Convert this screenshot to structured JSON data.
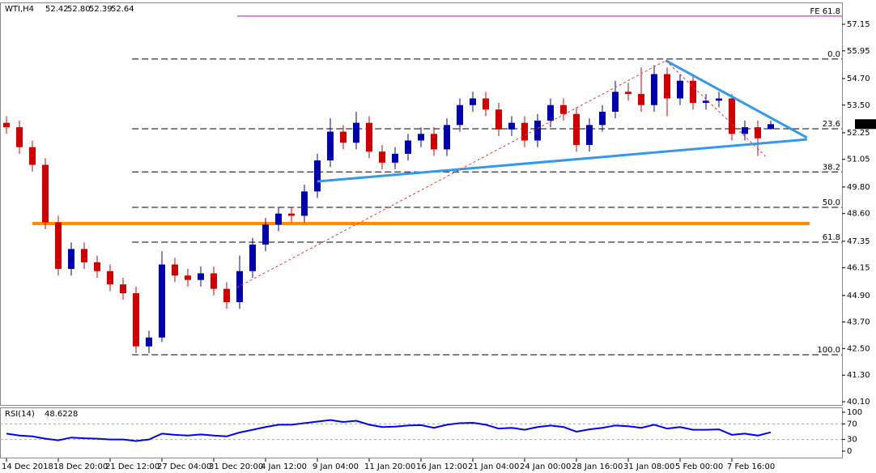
{
  "chart_data": [
    {
      "type": "candlestick",
      "symbol": "WTI,H4",
      "quote": [
        "52.42",
        "52.80",
        "52.39",
        "52.64"
      ],
      "up_color": "#0000b0",
      "down_color": "#d00000",
      "open": [
        52.7,
        52.5,
        51.6,
        50.8,
        48.2,
        46.1,
        47.0,
        46.4,
        46.0,
        45.4,
        45.0,
        42.6,
        43.0,
        46.3,
        45.8,
        45.6,
        45.9,
        45.2,
        44.6,
        46.0,
        47.2,
        48.1,
        48.6,
        48.5,
        49.6,
        51.0,
        52.3,
        51.8,
        52.7,
        51.4,
        50.9,
        51.3,
        51.9,
        52.2,
        51.5,
        52.6,
        53.5,
        53.8,
        53.3,
        52.4,
        52.7,
        51.9,
        52.8,
        53.5,
        53.1,
        51.7,
        52.6,
        53.2,
        54.1,
        54.0,
        53.5,
        54.9,
        53.8,
        54.6,
        53.6,
        53.7,
        53.8,
        52.2,
        52.5,
        52.42
      ],
      "high": [
        53.0,
        52.8,
        51.9,
        51.1,
        48.5,
        47.3,
        47.3,
        46.7,
        46.3,
        45.7,
        45.3,
        43.3,
        46.9,
        46.6,
        46.1,
        46.2,
        46.2,
        45.5,
        46.7,
        47.5,
        48.4,
        48.9,
        48.9,
        49.9,
        51.3,
        52.9,
        52.6,
        53.2,
        53.0,
        51.7,
        51.6,
        52.2,
        52.5,
        52.5,
        52.9,
        53.8,
        54.1,
        54.1,
        53.6,
        53.0,
        53.0,
        53.1,
        53.8,
        53.8,
        53.4,
        52.9,
        53.5,
        54.6,
        54.5,
        55.2,
        55.3,
        55.2,
        54.9,
        54.9,
        54.0,
        54.1,
        54.0,
        52.8,
        52.8,
        52.8
      ],
      "low": [
        52.2,
        51.3,
        50.5,
        47.9,
        45.8,
        45.8,
        46.1,
        45.7,
        45.1,
        44.7,
        42.3,
        42.3,
        42.8,
        45.5,
        45.3,
        45.3,
        44.9,
        44.3,
        44.3,
        45.7,
        46.9,
        47.8,
        48.2,
        48.2,
        49.3,
        50.7,
        51.5,
        51.5,
        51.1,
        50.6,
        50.6,
        51.0,
        51.6,
        51.2,
        51.2,
        52.3,
        53.2,
        53.0,
        52.1,
        52.1,
        51.6,
        51.6,
        52.5,
        52.8,
        51.4,
        51.4,
        52.3,
        52.9,
        53.7,
        53.2,
        53.2,
        53.0,
        53.5,
        53.3,
        53.3,
        53.4,
        51.9,
        51.9,
        51.2,
        52.39
      ],
      "close": [
        52.5,
        51.6,
        50.8,
        48.2,
        46.1,
        47.0,
        46.4,
        46.0,
        45.4,
        45.0,
        42.6,
        43.0,
        46.3,
        45.8,
        45.6,
        45.9,
        45.2,
        44.6,
        46.0,
        47.2,
        48.1,
        48.6,
        48.5,
        49.6,
        51.0,
        52.3,
        51.8,
        52.7,
        51.4,
        50.9,
        51.3,
        51.9,
        52.2,
        51.5,
        52.6,
        53.5,
        53.8,
        53.3,
        52.4,
        52.7,
        51.9,
        52.8,
        53.5,
        53.1,
        51.7,
        52.6,
        53.2,
        54.1,
        54.0,
        53.5,
        54.9,
        53.8,
        54.6,
        53.6,
        53.7,
        53.8,
        52.2,
        52.5,
        52.0,
        52.64
      ],
      "xlim": [
        -0.5,
        64.5
      ],
      "ylim": [
        40.1,
        57.15
      ],
      "yticks": [
        {
          "value": 40.1,
          "label": "40.10"
        },
        {
          "value": 41.3,
          "label": "41.30"
        },
        {
          "value": 42.5,
          "label": "42.50"
        },
        {
          "value": 43.7,
          "label": "43.70"
        },
        {
          "value": 44.9,
          "label": "44.90"
        },
        46.15,
        47.35,
        {
          "value": 48.6,
          "label": "48.60"
        },
        {
          "value": 49.8,
          "label": "49.80"
        },
        51.05,
        52.25,
        {
          "value": 53.5,
          "label": "53.50"
        },
        {
          "value": 54.7,
          "label": "54.70"
        },
        55.95,
        57.15
      ],
      "xticks": [
        {
          "value": 0,
          "label": "14 Dec 2018"
        },
        {
          "value": 4,
          "label": "18 Dec 20:00"
        },
        {
          "value": 8,
          "label": "21 Dec 12:00"
        },
        {
          "value": 12,
          "label": "27 Dec 04:00"
        },
        {
          "value": 16,
          "label": "31 Dec 20:00"
        },
        {
          "value": 20,
          "label": "4 Jan 12:00"
        },
        {
          "value": 24,
          "label": "9 Jan 04:00"
        },
        {
          "value": 28,
          "label": "11 Jan 20:00"
        },
        {
          "value": 32,
          "label": "16 Jan 12:00"
        },
        {
          "value": 36,
          "label": "21 Jan 04:00"
        },
        {
          "value": 40,
          "label": "24 Jan 00:00"
        },
        {
          "value": 44,
          "label": "28 Jan 16:00"
        },
        {
          "value": 48,
          "label": "31 Jan 08:00"
        },
        {
          "value": 52,
          "label": "5 Feb 00:00"
        },
        {
          "value": 56,
          "label": "7 Feb 16:00"
        }
      ],
      "fib": [
        {
          "label": "0.0",
          "price": 55.58
        },
        {
          "label": "23.6",
          "price": 52.43
        },
        {
          "label": "38.2",
          "price": 50.48
        },
        {
          "label": "50.0",
          "price": 48.88
        },
        {
          "label": "61.8",
          "price": 47.31
        },
        {
          "label": "100.0",
          "price": 42.22
        }
      ],
      "fib_start": 9.7,
      "extension": {
        "label": "FE 61.8",
        "price": 57.52,
        "start": 17.8,
        "color": "#cc00cc"
      },
      "hline": {
        "price": 48.15,
        "x": [
          2,
          62
        ],
        "color": "#ff8c00"
      },
      "trendlines": [
        {
          "x": [
            24,
            61.8
          ],
          "y": [
            50.05,
            51.95
          ],
          "color": "#3399ee",
          "style": "solid"
        },
        {
          "x": [
            50.9,
            61.8
          ],
          "y": [
            55.51,
            52.03
          ],
          "color": "#3399ee",
          "style": "solid"
        },
        {
          "x": [
            17.8,
            50.9
          ],
          "y": [
            45.26,
            55.51
          ],
          "color": "#ee3333",
          "style": "dashed"
        },
        {
          "x": [
            50.9,
            58.6
          ],
          "y": [
            55.51,
            51.19
          ],
          "color": "#ee3333",
          "style": "dashed"
        }
      ]
    },
    {
      "type": "line",
      "name": "RSI(14)",
      "color": "#0000ff",
      "values": [
        45,
        40,
        38,
        32,
        28,
        35,
        33,
        32,
        30,
        30,
        26,
        30,
        45,
        42,
        40,
        43,
        40,
        38,
        48,
        55,
        62,
        68,
        68,
        72,
        76,
        80,
        75,
        78,
        68,
        62,
        63,
        66,
        67,
        60,
        68,
        72,
        73,
        68,
        58,
        60,
        55,
        62,
        66,
        62,
        50,
        56,
        60,
        66,
        64,
        60,
        68,
        58,
        62,
        55,
        55,
        56,
        42,
        45,
        40,
        48.6228
      ],
      "ylim": [
        0,
        100
      ],
      "yticks": [
        0,
        30,
        70,
        100
      ],
      "levels": [
        30,
        70
      ]
    }
  ]
}
